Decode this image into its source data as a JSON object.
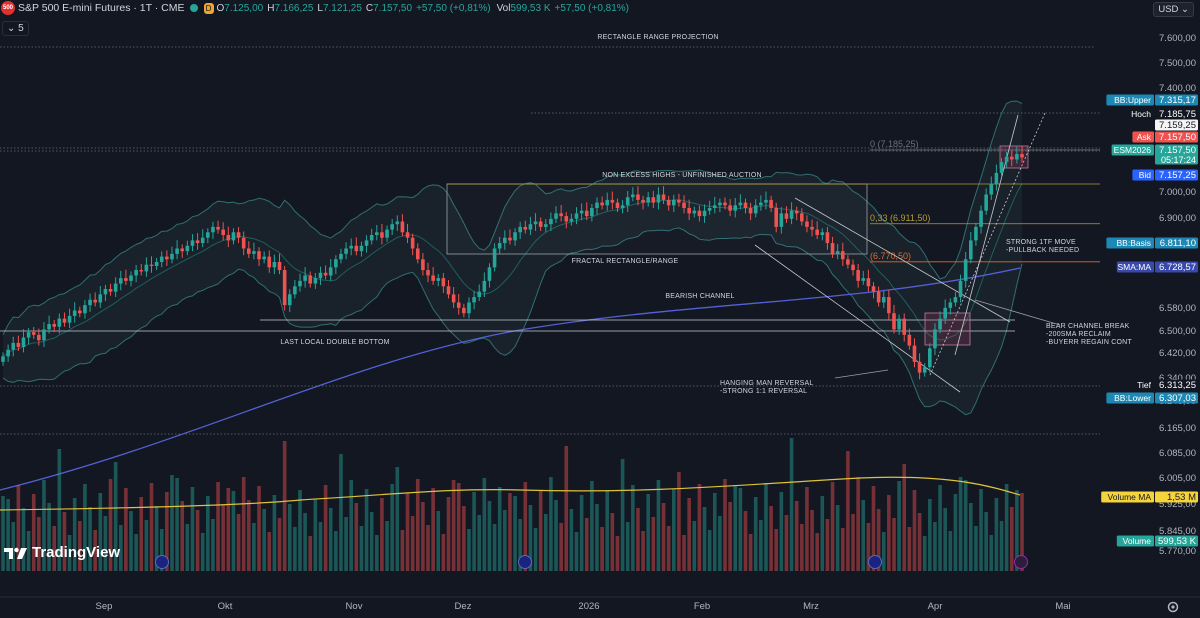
{
  "header": {
    "logo_text": "500",
    "title": "S&P 500 E-mini Futures · 1T · CME",
    "badge": "D",
    "open_label": "O",
    "open": "7.125,00",
    "high_label": "H",
    "high": "7.166,25",
    "low_label": "L",
    "low": "7.121,25",
    "close_label": "C",
    "close": "7.157,50",
    "change": "+57,50 (+0,81%)",
    "vol_label": "Vol",
    "volume": "599,53 K",
    "vol_change": "+57,50 (+0,81%)",
    "sub_value": "5",
    "currency": "USD"
  },
  "branding": {
    "name": "TradingView"
  },
  "colors": {
    "background": "#131722",
    "up": "#26a69a",
    "down": "#ef5350",
    "grid_text": "#b2b5be",
    "sma": "#5461d6",
    "volume_ma": "#ddc23a",
    "bb": "#2f6f72",
    "accent": "#2962ff"
  },
  "chart_data": {
    "type": "candlestick",
    "symbol": "S&P 500 E-mini Futures",
    "timeframe": "1T",
    "exchange": "CME",
    "x_labels": [
      "Sep",
      "Okt",
      "Nov",
      "Dez",
      "2026",
      "Feb",
      "Mrz",
      "Apr",
      "Mai"
    ],
    "y_ticks": [
      "7.600,00",
      "7.500,00",
      "7.400,00",
      "7.159,25",
      "7.000,00",
      "6.900,00",
      "6.580,00",
      "6.500,00",
      "6.420,00",
      "6.340,00",
      "6.245,00",
      "6.165,00",
      "6.085,00",
      "6.005,00",
      "5.925,00",
      "5.845,00",
      "5.770,00"
    ],
    "price_tags": [
      {
        "label": "BB:Upper",
        "value": "7.315,17"
      },
      {
        "label": "Hoch",
        "value": "7.185,75"
      },
      {
        "label": "",
        "value": "7.159,25"
      },
      {
        "label": "Ask",
        "value": "7.157,50"
      },
      {
        "label": "ESM2026",
        "value": "7.157,50",
        "extra": "05:17:24"
      },
      {
        "label": "Bid",
        "value": "7.157,25"
      },
      {
        "label": "BB:Basis",
        "value": "6.811,10"
      },
      {
        "label": "SMA:MA",
        "value": "6.728,57"
      },
      {
        "label": "Tief",
        "value": "6.313,25"
      },
      {
        "label": "BB:Lower",
        "value": "6.307,03"
      },
      {
        "label": "Volume MA",
        "value": "1,53 M"
      },
      {
        "label": "Volume",
        "value": "599,53 K"
      }
    ],
    "fib_levels": [
      {
        "label": "0 (7.185,25)",
        "value": 7185.25
      },
      {
        "label": "0,33 (6.911,50)",
        "value": 6911.5
      },
      {
        "label": "(6.770,50)",
        "value": 6770.5
      }
    ],
    "annotations": [
      "RECTANGLE RANGE PROJECTION",
      "NON EXCESS HIGHS - UNFINISHED AUCTION",
      "FRACTAL RECTANGLE/RANGE",
      "BEARISH CHANNEL",
      "LAST LOCAL DOUBLE BOTTOM",
      "HANGING MAN REVERSAL",
      "-STRONG 1:1 REVERSAL",
      "STRONG 1TF MOVE",
      "-PULLBACK NEEDED",
      "BEAR CHANNEL BREAK",
      "-200SMA RECLAIM",
      "-BUYERR REGAIN CONT"
    ],
    "closes": [
      6420,
      6445,
      6470,
      6455,
      6490,
      6510,
      6500,
      6480,
      6520,
      6540,
      6530,
      6560,
      6545,
      6570,
      6590,
      6580,
      6610,
      6630,
      6620,
      6650,
      6670,
      6660,
      6690,
      6710,
      6700,
      6720,
      6740,
      6735,
      6760,
      6755,
      6770,
      6790,
      6780,
      6800,
      6820,
      6810,
      6830,
      6850,
      6840,
      6860,
      6880,
      6900,
      6890,
      6870,
      6850,
      6880,
      6860,
      6820,
      6800,
      6810,
      6780,
      6790,
      6750,
      6770,
      6740,
      6610,
      6650,
      6680,
      6700,
      6720,
      6690,
      6710,
      6730,
      6720,
      6750,
      6780,
      6800,
      6820,
      6830,
      6810,
      6830,
      6850,
      6870,
      6880,
      6860,
      6890,
      6910,
      6920,
      6880,
      6860,
      6820,
      6780,
      6740,
      6720,
      6700,
      6710,
      6680,
      6650,
      6620,
      6600,
      6580,
      6620,
      6640,
      6660,
      6700,
      6750,
      6820,
      6840,
      6860,
      6850,
      6880,
      6900,
      6890,
      6910,
      6920,
      6900,
      6910,
      6930,
      6950,
      6940,
      6920,
      6930,
      6950,
      6960,
      6940,
      6970,
      6990,
      6980,
      7000,
      6990,
      6970,
      6980,
      7010,
      7020,
      7000,
      6990,
      7010,
      6990,
      7020,
      7000,
      6980,
      7000,
      6990,
      6970,
      6950,
      6960,
      6940,
      6960,
      6970,
      6980,
      6990,
      6980,
      6960,
      6980,
      6990,
      6970,
      6950,
      6980,
      6990,
      7000,
      6970,
      6900,
      6950,
      6930,
      6960,
      6950,
      6920,
      6900,
      6890,
      6870,
      6880,
      6840,
      6800,
      6810,
      6780,
      6760,
      6740,
      6700,
      6710,
      6680,
      6660,
      6620,
      6640,
      6580,
      6520,
      6560,
      6500,
      6460,
      6400,
      6360,
      6380,
      6450,
      6520,
      6560,
      6600,
      6620,
      6640,
      6700,
      6780,
      6850,
      6900,
      6960,
      7020,
      7060,
      7100,
      7140,
      7160,
      7150,
      7170,
      7157.5
    ],
    "volume_ma_value": 1530000,
    "last_volume": 599530
  }
}
